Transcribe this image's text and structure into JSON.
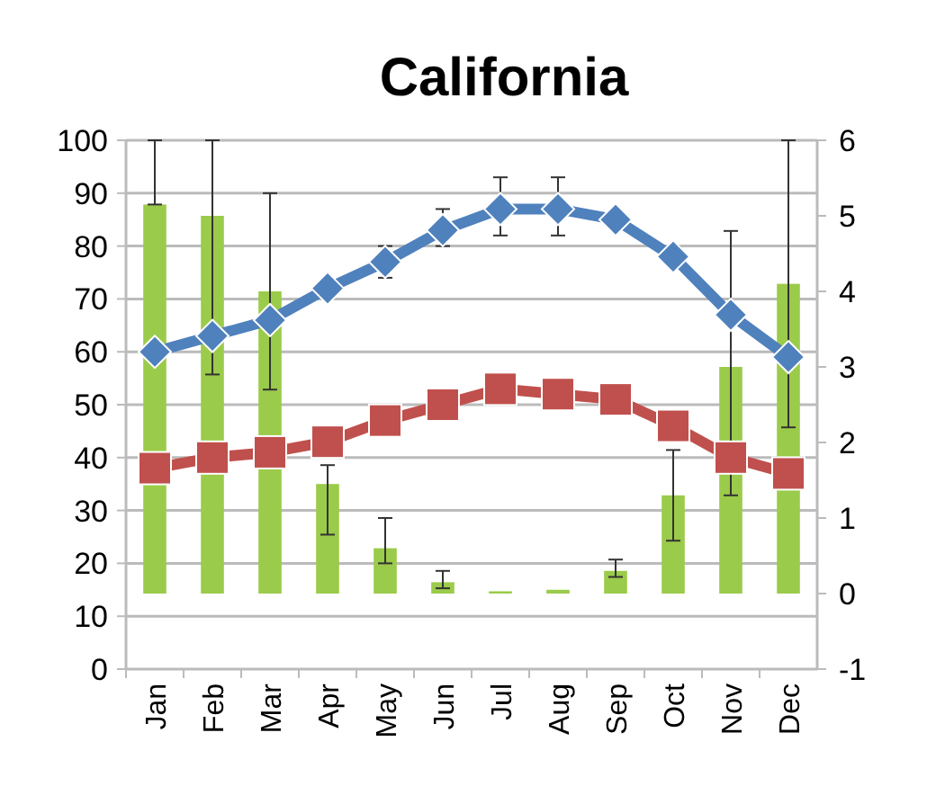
{
  "chart_data": {
    "type": "bar",
    "title": "California",
    "categories": [
      "Jan",
      "Feb",
      "Mar",
      "Apr",
      "May",
      "Jun",
      "Jul",
      "Aug",
      "Sep",
      "Oct",
      "Nov",
      "Dec"
    ],
    "series": [
      {
        "axis": "y2",
        "color": "#9bcb4a",
        "values": [
          5.15,
          5.0,
          4.0,
          1.45,
          0.6,
          0.15,
          0.03,
          0.05,
          0.3,
          1.3,
          3.0,
          4.1
        ],
        "errors": [
          [
            5.15,
            6
          ],
          [
            2.9,
            6
          ],
          [
            2.7,
            5.3
          ],
          [
            0.78,
            1.7
          ],
          [
            0.4,
            1.0
          ],
          [
            0.07,
            0.3
          ],
          null,
          null,
          [
            0.22,
            0.45
          ],
          [
            0.7,
            1.9
          ],
          [
            1.3,
            4.8
          ],
          [
            2.2,
            6
          ]
        ]
      },
      {
        "type": "line",
        "axis": "y",
        "color": "#4f81bd",
        "marker": "diamond",
        "values": [
          60,
          63,
          66,
          72,
          77,
          83,
          87,
          87,
          85,
          78,
          67,
          59
        ],
        "errors": [
          null,
          null,
          null,
          null,
          [
            74,
            80
          ],
          [
            80,
            87
          ],
          [
            82,
            93
          ],
          [
            82,
            93
          ],
          null,
          null,
          null,
          null
        ]
      },
      {
        "type": "line",
        "axis": "y",
        "color": "#c0504d",
        "marker": "square",
        "values": [
          38,
          40,
          41,
          43,
          47,
          50,
          53,
          52,
          51,
          46,
          40,
          37
        ]
      }
    ],
    "ylim": [
      0,
      100
    ],
    "yticks": [
      0,
      10,
      20,
      30,
      40,
      50,
      60,
      70,
      80,
      90,
      100
    ],
    "y2lim": [
      -1,
      6
    ],
    "y2ticks": [
      -1,
      0,
      1,
      2,
      3,
      4,
      5,
      6
    ],
    "grid": "y"
  }
}
